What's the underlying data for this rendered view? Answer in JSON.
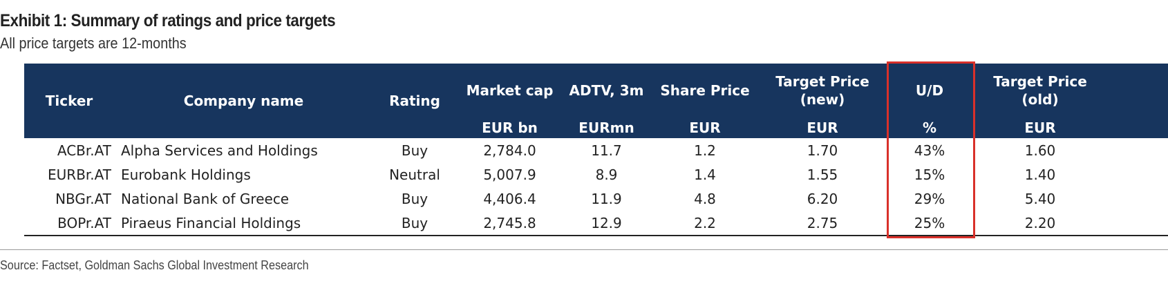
{
  "title": "Exhibit 1: Summary of ratings and price targets",
  "subtitle": "All price targets are 12-months",
  "columns": [
    {
      "label": "Ticker",
      "unit": ""
    },
    {
      "label": "Company name",
      "unit": ""
    },
    {
      "label": "Rating",
      "unit": ""
    },
    {
      "label": "Market cap",
      "unit": "EUR bn"
    },
    {
      "label": "ADTV, 3m",
      "unit": "EURmn"
    },
    {
      "label": "Share Price",
      "unit": "EUR"
    },
    {
      "label": "Target Price (new)",
      "unit": "EUR"
    },
    {
      "label": "U/D",
      "unit": "%"
    },
    {
      "label": "Target Price (old)",
      "unit": "EUR"
    }
  ],
  "rows": [
    [
      "ACBr.AT",
      "Alpha Services and Holdings",
      "Buy",
      "2,784.0",
      "11.7",
      "1.2",
      "1.70",
      "43%",
      "1.60"
    ],
    [
      "EURBr.AT",
      "Eurobank Holdings",
      "Neutral",
      "5,007.9",
      "8.9",
      "1.4",
      "1.55",
      "15%",
      "1.40"
    ],
    [
      "NBGr.AT",
      "National Bank of Greece",
      "Buy",
      "4,406.4",
      "11.9",
      "4.8",
      "6.20",
      "29%",
      "5.40"
    ],
    [
      "BOPr.AT",
      "Piraeus Financial Holdings",
      "Buy",
      "2,745.8",
      "12.9",
      "2.2",
      "2.75",
      "25%",
      "2.20"
    ]
  ],
  "highlight_color": "#d9302a",
  "header_color": "#17355e",
  "source": "Source: Factset, Goldman Sachs Global Investment Research"
}
